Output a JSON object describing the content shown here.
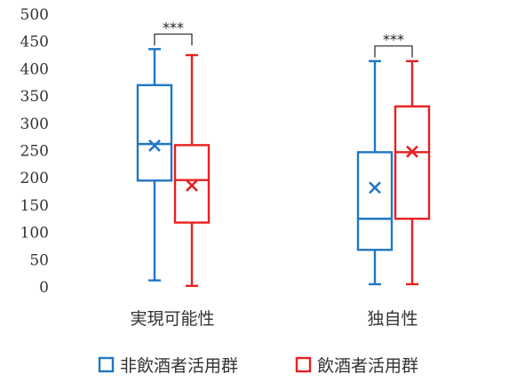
{
  "chart_data": {
    "type": "boxplot",
    "title": "",
    "xlabel": "",
    "ylabel": "",
    "ylim": [
      0,
      500
    ],
    "yticks": [
      0,
      50,
      100,
      150,
      200,
      250,
      300,
      350,
      400,
      450,
      500
    ],
    "ytick_labels": [
      "0",
      "50",
      "100",
      "150",
      "200",
      "250",
      "300",
      "350",
      "400",
      "450",
      "500"
    ],
    "grid": false,
    "legend_position": "bottom",
    "categories": [
      "実現可能性",
      "独自性"
    ],
    "series": [
      {
        "name": "非飲酒者活用群",
        "color": "#1f77c4",
        "boxes": [
          {
            "min": 12,
            "q1": 195,
            "median": 262,
            "q3": 370,
            "max": 436,
            "mean": 259
          },
          {
            "min": 5,
            "q1": 68,
            "median": 125,
            "q3": 247,
            "max": 414,
            "mean": 182
          }
        ]
      },
      {
        "name": "飲酒者活用群",
        "color": "#e82020",
        "boxes": [
          {
            "min": 2,
            "q1": 118,
            "median": 196,
            "q3": 260,
            "max": 425,
            "mean": 186
          },
          {
            "min": 5,
            "q1": 125,
            "median": 247,
            "q3": 331,
            "max": 414,
            "mean": 248
          }
        ]
      }
    ],
    "annotations": [
      {
        "category": "実現可能性",
        "text": "***"
      },
      {
        "category": "独自性",
        "text": "***"
      }
    ]
  }
}
